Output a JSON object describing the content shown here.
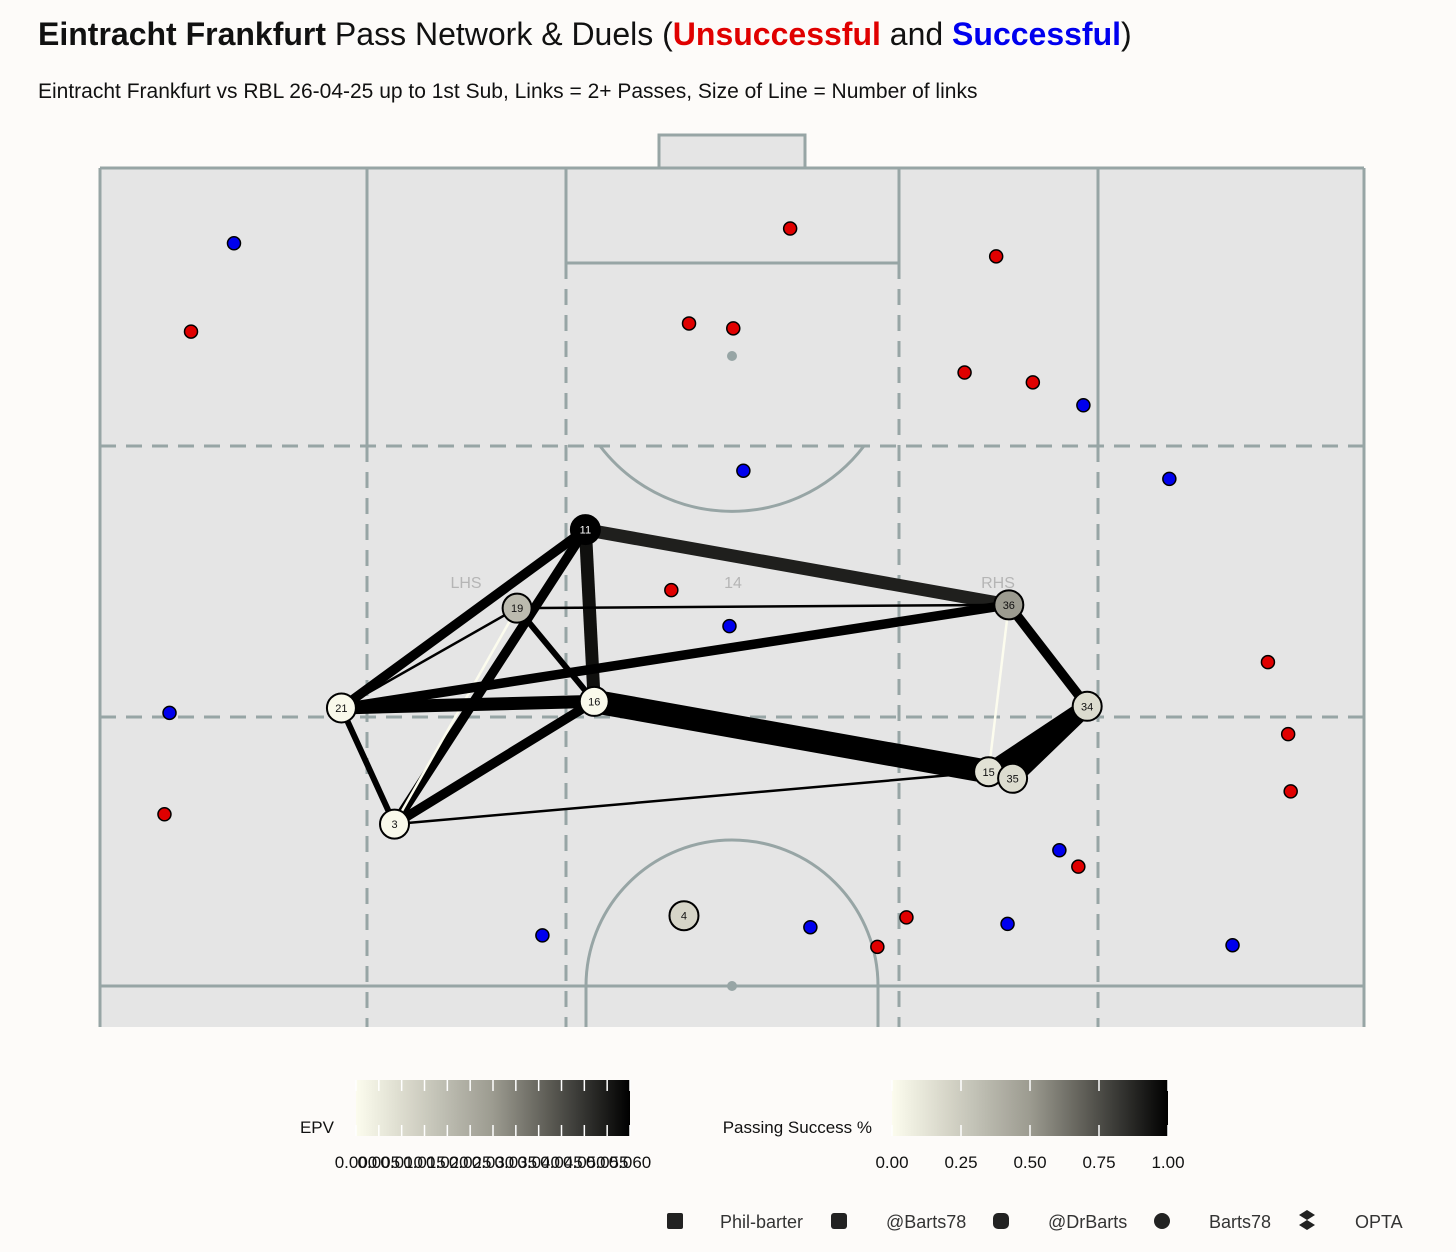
{
  "chart_data": {
    "type": "pass-network",
    "title": {
      "team": "Eintracht Frankfurt",
      "middle": " Pass Network & Duels (",
      "and": " and ",
      "end": ")"
    },
    "subtitle": "Eintracht Frankfurt vs RBL 26-04-25 up to 1st Sub, Links = 2+ Passes, Size of Line = Number of links",
    "zones": [
      "LHS",
      "14",
      "RHS"
    ],
    "xlim": [
      0,
      100
    ],
    "ylim": [
      47.5,
      100
    ],
    "pitch_color": "#e5e5e5",
    "line_color": "#97a5a5",
    "series": [
      {
        "name": "Unsuccessful",
        "color": "#e00000",
        "x": [
          7.2,
          54.6,
          70.9,
          46.6,
          50.1,
          68.4,
          73.8,
          45.2,
          92.4,
          94.0,
          94.2,
          5.1,
          77.4,
          63.8,
          61.5
        ],
        "y": [
          90.0,
          96.3,
          94.6,
          90.5,
          90.2,
          87.5,
          86.9,
          74.2,
          69.8,
          65.4,
          61.9,
          60.5,
          57.3,
          54.2,
          52.4
        ]
      },
      {
        "name": "Successful",
        "color": "#0000ee",
        "x": [
          10.6,
          77.8,
          50.9,
          84.6,
          49.8,
          5.5,
          75.9,
          56.2,
          71.8,
          35.0,
          89.6
        ],
        "y": [
          95.4,
          85.5,
          81.5,
          81.0,
          72.0,
          66.7,
          58.3,
          53.6,
          53.8,
          53.1,
          52.5
        ]
      }
    ],
    "nodes": [
      {
        "label": "11",
        "x": 38.4,
        "y": 77.9,
        "epv": 0.06
      },
      {
        "label": "19",
        "x": 33.0,
        "y": 73.1,
        "epv": 0.02
      },
      {
        "label": "36",
        "x": 71.9,
        "y": 73.3,
        "epv": 0.03
      },
      {
        "label": "21",
        "x": 19.1,
        "y": 67.0,
        "epv": 0.001
      },
      {
        "label": "16",
        "x": 39.1,
        "y": 67.4,
        "epv": 0.001
      },
      {
        "label": "34",
        "x": 78.1,
        "y": 67.1,
        "epv": 0.01
      },
      {
        "label": "15",
        "x": 70.3,
        "y": 63.1,
        "epv": 0.008
      },
      {
        "label": "35",
        "x": 72.2,
        "y": 62.7,
        "epv": 0.01
      },
      {
        "label": "3",
        "x": 23.3,
        "y": 59.9,
        "epv": 0.001
      },
      {
        "label": "4",
        "x": 46.2,
        "y": 54.3,
        "epv": 0.012
      }
    ],
    "links": [
      {
        "source": "11",
        "target": "36",
        "passes": 5,
        "success": 0.9
      },
      {
        "source": "11",
        "target": "16",
        "passes": 5,
        "success": 0.95
      },
      {
        "source": "11",
        "target": "21",
        "passes": 4,
        "success": 1
      },
      {
        "source": "11",
        "target": "3",
        "passes": 4,
        "success": 1
      },
      {
        "source": "19",
        "target": "36",
        "passes": 2,
        "success": 1
      },
      {
        "source": "19",
        "target": "21",
        "passes": 2,
        "success": 1
      },
      {
        "source": "19",
        "target": "16",
        "passes": 3,
        "success": 1
      },
      {
        "source": "19",
        "target": "3",
        "passes": 2,
        "success": 0
      },
      {
        "source": "21",
        "target": "36",
        "passes": 4,
        "success": 1
      },
      {
        "source": "21",
        "target": "16",
        "passes": 5,
        "success": 1
      },
      {
        "source": "21",
        "target": "3",
        "passes": 3,
        "success": 1
      },
      {
        "source": "16",
        "target": "3",
        "passes": 4,
        "success": 1
      },
      {
        "source": "16",
        "target": "15",
        "passes": 8,
        "success": 1
      },
      {
        "source": "36",
        "target": "34",
        "passes": 4,
        "success": 1
      },
      {
        "source": "36",
        "target": "15",
        "passes": 2,
        "success": 0
      },
      {
        "source": "34",
        "target": "15",
        "passes": 6,
        "success": 1
      },
      {
        "source": "34",
        "target": "35",
        "passes": 6,
        "success": 1
      },
      {
        "source": "3",
        "target": "15",
        "passes": 2,
        "success": 1
      }
    ],
    "epv_scale": {
      "title": "EPV",
      "lim": [
        0,
        0.06
      ],
      "ticks": [
        {
          "value": 0,
          "label": "0.000"
        },
        {
          "value": 0.005,
          "label": "0.005"
        },
        {
          "value": 0.01,
          "label": "0.010"
        },
        {
          "value": 0.015,
          "label": "0.015"
        },
        {
          "value": 0.02,
          "label": "0.020"
        },
        {
          "value": 0.025,
          "label": "0.025"
        },
        {
          "value": 0.03,
          "label": "0.030"
        },
        {
          "value": 0.035,
          "label": "0.035"
        },
        {
          "value": 0.04,
          "label": "0.040"
        },
        {
          "value": 0.045,
          "label": "0.045"
        },
        {
          "value": 0.05,
          "label": "0.050"
        },
        {
          "value": 0.055,
          "label": "0.055"
        },
        {
          "value": 0.06,
          "label": "0.060"
        }
      ]
    },
    "success_scale": {
      "title": "Passing Success %",
      "lim": [
        0,
        1
      ],
      "ticks": [
        {
          "value": 0,
          "label": "0.00"
        },
        {
          "value": 0.25,
          "label": "0.25"
        },
        {
          "value": 0.5,
          "label": "0.50"
        },
        {
          "value": 0.75,
          "label": "0.75"
        },
        {
          "value": 1,
          "label": "1.00"
        }
      ]
    },
    "credits": [
      "Phil-barter",
      "@Barts78",
      "@DrBarts",
      "Barts78",
      "OPTA"
    ]
  }
}
